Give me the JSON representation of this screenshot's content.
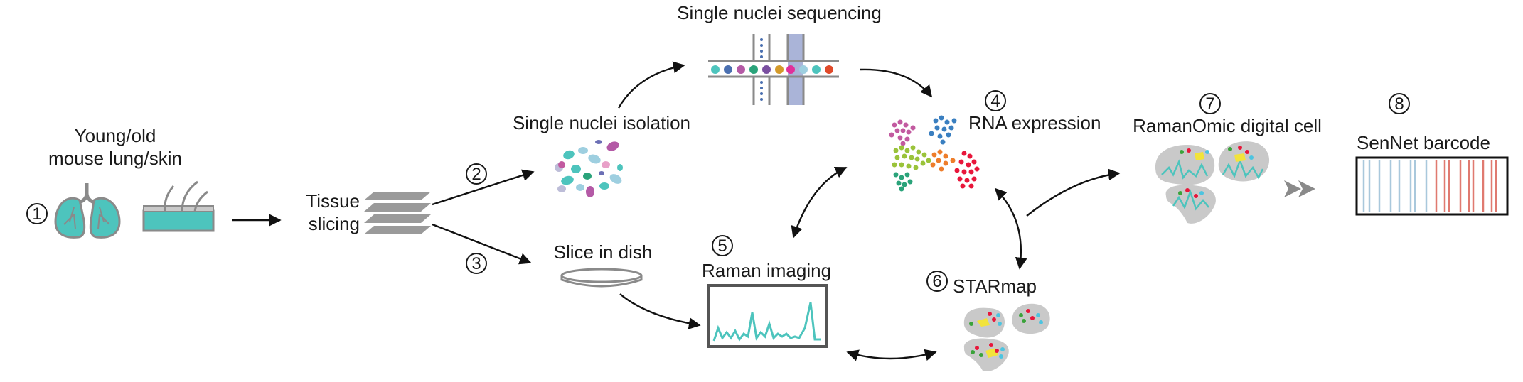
{
  "steps": {
    "s1": {
      "num": "1"
    },
    "s2": {
      "num": "2"
    },
    "s3": {
      "num": "3"
    },
    "s4": {
      "num": "4"
    },
    "s5": {
      "num": "5"
    },
    "s6": {
      "num": "6"
    },
    "s7": {
      "num": "7"
    },
    "s8": {
      "num": "8"
    }
  },
  "labels": {
    "young_old_line1": "Young/old",
    "young_old_line2": "mouse lung/skin",
    "tissue_line1": "Tissue",
    "tissue_line2": "slicing",
    "single_nuclei_isolation": "Single nuclei isolation",
    "single_nuclei_sequencing": "Single nuclei sequencing",
    "slice_in_dish": "Slice in dish",
    "raman_imaging": "Raman imaging",
    "rna_expression": "RNA expression",
    "starmap": "STARmap",
    "ramanomic_digital_cell": "RamanOmic digital cell",
    "sennet_barcode": "SenNet barcode"
  },
  "colors": {
    "teal": "#4dc4bd",
    "gray": "#9a9a9a",
    "light_gray": "#c9c9c9",
    "barcode_blue": "#a9c8dc",
    "barcode_red": "#e07a70"
  }
}
